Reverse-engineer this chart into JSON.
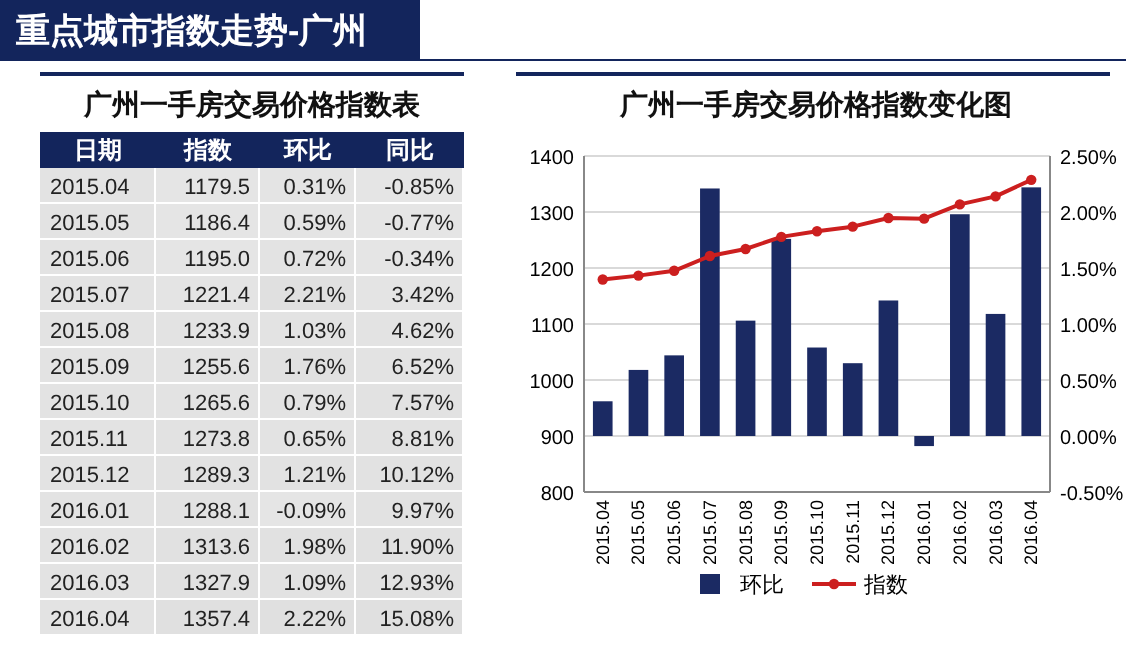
{
  "chart_data": [
    {
      "type": "heatmap",
      "title": "重点城市指数走势-广州",
      "subtitle": "广州一手房交易价格指数表",
      "ylabel": "日期",
      "categories": [
        "指数",
        "环比",
        "同比"
      ],
      "y_categories": [
        "2015.04",
        "2015.05",
        "2015.06",
        "2015.07",
        "2015.08",
        "2015.09",
        "2015.10",
        "2015.11",
        "2015.12",
        "2016.01",
        "2016.02",
        "2016.03",
        "2016.04"
      ],
      "cells": [
        [
          1179.5,
          0.31,
          -0.85
        ],
        [
          1186.4,
          0.59,
          -0.77
        ],
        [
          1195.0,
          0.72,
          -0.34
        ],
        [
          1221.4,
          2.21,
          3.42
        ],
        [
          1233.9,
          1.03,
          4.62
        ],
        [
          1255.6,
          1.76,
          6.52
        ],
        [
          1265.6,
          0.79,
          7.57
        ],
        [
          1273.8,
          0.65,
          8.81
        ],
        [
          1289.3,
          1.21,
          10.12
        ],
        [
          1288.1,
          -0.09,
          9.97
        ],
        [
          1313.6,
          1.98,
          11.9
        ],
        [
          1327.9,
          1.09,
          12.93
        ],
        [
          1357.4,
          2.22,
          15.08
        ]
      ],
      "cell_labels": [
        [
          "1179.5",
          "0.31%",
          "-0.85%"
        ],
        [
          "1186.4",
          "0.59%",
          "-0.77%"
        ],
        [
          "1195.0",
          "0.72%",
          "-0.34%"
        ],
        [
          "1221.4",
          "2.21%",
          "3.42%"
        ],
        [
          "1233.9",
          "1.03%",
          "4.62%"
        ],
        [
          "1255.6",
          "1.76%",
          "6.52%"
        ],
        [
          "1265.6",
          "0.79%",
          "7.57%"
        ],
        [
          "1273.8",
          "0.65%",
          "8.81%"
        ],
        [
          "1289.3",
          "1.21%",
          "10.12%"
        ],
        [
          "1288.1",
          "-0.09%",
          "9.97%"
        ],
        [
          "1313.6",
          "1.98%",
          "11.90%"
        ],
        [
          "1327.9",
          "1.09%",
          "12.93%"
        ],
        [
          "1357.4",
          "2.22%",
          "15.08%"
        ]
      ]
    },
    {
      "type": "bar",
      "title": "广州一手房交易价格指数变化图",
      "categories": [
        "2015.04",
        "2015.05",
        "2015.06",
        "2015.07",
        "2015.08",
        "2015.09",
        "2015.10",
        "2015.11",
        "2015.12",
        "2016.01",
        "2016.02",
        "2016.03",
        "2016.04"
      ],
      "series": [
        {
          "name": "环比",
          "type": "bar",
          "axis": "y2",
          "color": "#1b2a63",
          "values": [
            0.31,
            0.59,
            0.72,
            2.21,
            1.03,
            1.76,
            0.79,
            0.65,
            1.21,
            -0.09,
            1.98,
            1.09,
            2.22
          ]
        },
        {
          "name": "指数",
          "type": "line",
          "color": "#cc1f1f",
          "marker": "circle",
          "values": [
            1179.5,
            1186.4,
            1195.0,
            1221.4,
            1233.9,
            1255.6,
            1265.6,
            1273.8,
            1289.3,
            1288.1,
            1313.6,
            1327.9,
            1357.4
          ]
        }
      ],
      "ylim": [
        800,
        1400
      ],
      "yticks": [
        800,
        900,
        1000,
        1100,
        1200,
        1300,
        1400
      ],
      "y2lim": [
        -0.5,
        2.5
      ],
      "y2ticks": [
        {
          "value": -0.5,
          "label": "-0.50%"
        },
        {
          "value": 0,
          "label": "0.00%"
        },
        {
          "value": 0.5,
          "label": "0.50%"
        },
        {
          "value": 1,
          "label": "1.00%"
        },
        {
          "value": 1.5,
          "label": "1.50%"
        },
        {
          "value": 2,
          "label": "2.00%"
        },
        {
          "value": 2.5,
          "label": "2.50%"
        }
      ],
      "grid": "y",
      "legend": "bottom"
    }
  ]
}
